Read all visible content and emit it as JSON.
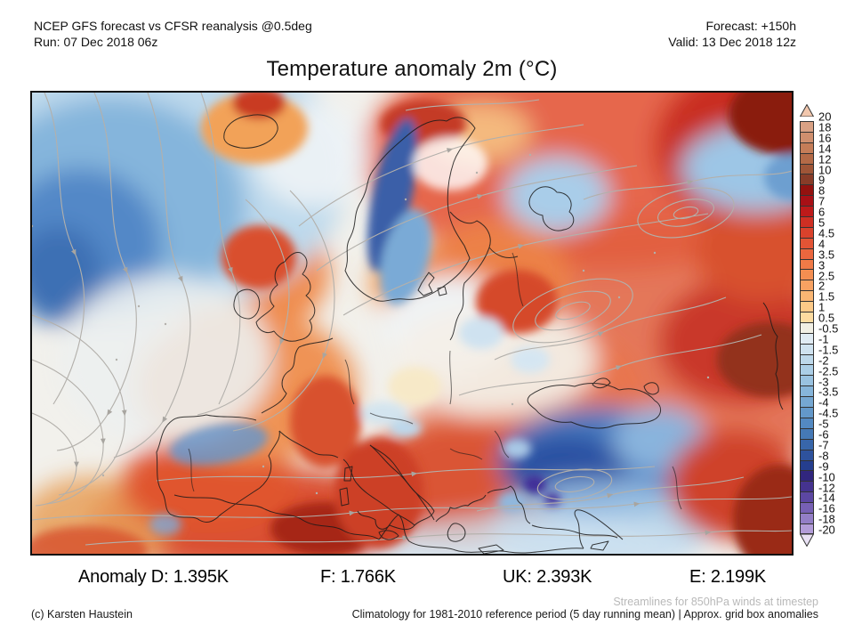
{
  "header": {
    "left_line1": "NCEP GFS forecast vs CFSR reanalysis @0.5deg",
    "left_line2": "Run: 07 Dec 2018 06z",
    "right_line1": "Forecast: +150h",
    "right_line2": "Valid: 13 Dec 2018 12z"
  },
  "title": "Temperature anomaly 2m (°C)",
  "annotations": {
    "d": "Anomaly D: 1.395K",
    "f": "F: 1.766K",
    "uk": "UK: 2.393K",
    "e": "E: 2.199K"
  },
  "footer": {
    "credit": "(c) Karsten Haustein",
    "streamlines_note": "Streamlines for 850hPa winds at timestep",
    "climatology_note": "Climatology for 1981-2010 reference period (5 day running mean) | Approx. grid box anomalies"
  },
  "colorbar": {
    "units": "°C",
    "arrow_top_color": "#f2c7ad",
    "arrow_bottom_color": "#e9e1f4",
    "final_label": "-20",
    "segments": [
      {
        "label": "20",
        "color": "#d9a184"
      },
      {
        "label": "18",
        "color": "#d08f6e"
      },
      {
        "label": "16",
        "color": "#c57d58"
      },
      {
        "label": "14",
        "color": "#b46a47"
      },
      {
        "label": "12",
        "color": "#9f5537"
      },
      {
        "label": "10",
        "color": "#883c28"
      },
      {
        "label": "9",
        "color": "#93120f"
      },
      {
        "label": "8",
        "color": "#a81016"
      },
      {
        "label": "7",
        "color": "#bd1a1a"
      },
      {
        "label": "6",
        "color": "#cf2f23"
      },
      {
        "label": "5",
        "color": "#da422c"
      },
      {
        "label": "4.5",
        "color": "#e35435"
      },
      {
        "label": "4",
        "color": "#ea663e"
      },
      {
        "label": "3.5",
        "color": "#f07a47"
      },
      {
        "label": "3",
        "color": "#f48e51"
      },
      {
        "label": "2.5",
        "color": "#f8a262"
      },
      {
        "label": "2",
        "color": "#fab673"
      },
      {
        "label": "1.5",
        "color": "#fcc987"
      },
      {
        "label": "1",
        "color": "#fcdba0"
      },
      {
        "label": "0.5",
        "color": "#f1efe4"
      },
      {
        "label": "-0.5",
        "color": "#e0ebf3"
      },
      {
        "label": "-1",
        "color": "#cfe2ef"
      },
      {
        "label": "-1.5",
        "color": "#bdd8ea"
      },
      {
        "label": "-2",
        "color": "#abcee6"
      },
      {
        "label": "-2.5",
        "color": "#99c2e0"
      },
      {
        "label": "-3",
        "color": "#86b5da"
      },
      {
        "label": "-3.5",
        "color": "#75a7d2"
      },
      {
        "label": "-4",
        "color": "#6398ca"
      },
      {
        "label": "-4.5",
        "color": "#5389c2"
      },
      {
        "label": "-5",
        "color": "#4579b6"
      },
      {
        "label": "-6",
        "color": "#3866aa"
      },
      {
        "label": "-7",
        "color": "#2e529d"
      },
      {
        "label": "-8",
        "color": "#253e8e"
      },
      {
        "label": "-9",
        "color": "#31267e"
      },
      {
        "label": "-10",
        "color": "#45338f"
      },
      {
        "label": "-12",
        "color": "#5c47a2"
      },
      {
        "label": "-14",
        "color": "#7760b4"
      },
      {
        "label": "-16",
        "color": "#937ec6"
      },
      {
        "label": "-18",
        "color": "#b29cd8"
      }
    ]
  }
}
